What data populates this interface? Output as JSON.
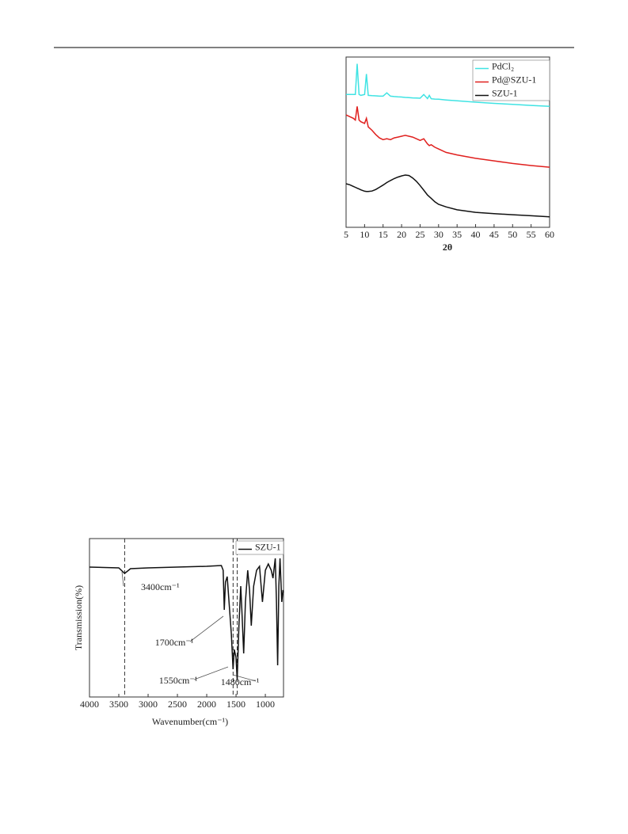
{
  "chart_data": [
    {
      "type": "line",
      "xlabel": "2θ",
      "x": [
        5,
        6,
        7,
        7.5,
        8,
        8.5,
        9,
        10,
        10.5,
        11,
        12,
        13,
        14,
        15,
        16,
        17,
        18,
        19,
        20,
        21,
        22,
        23,
        24,
        25,
        26,
        27,
        27.5,
        28,
        29,
        30,
        32,
        35,
        40,
        45,
        50,
        55,
        60
      ],
      "xlim": [
        5,
        60
      ],
      "xticks": [
        5,
        10,
        15,
        20,
        25,
        30,
        35,
        40,
        45,
        50,
        55,
        60
      ],
      "ylim": [
        0,
        100
      ],
      "legend": "top-right",
      "series": [
        {
          "name": "PdCl₂",
          "color": "#3fe3e3",
          "values": [
            78,
            78,
            78,
            78,
            96,
            78,
            77.5,
            78,
            90,
            77.5,
            77.3,
            77.2,
            77,
            77,
            79,
            77,
            76.8,
            76.6,
            76.5,
            76.3,
            76.2,
            76,
            75.9,
            75.8,
            78,
            75.6,
            77.5,
            75.5,
            75.3,
            75.2,
            74.8,
            74.3,
            73.5,
            72.8,
            72.2,
            71.6,
            71
          ]
        },
        {
          "name": "Pd@SZU-1",
          "color": "#e0201e",
          "values": [
            66,
            65,
            64,
            63,
            71,
            63,
            62,
            61,
            64,
            59,
            57,
            54.5,
            52.5,
            51.5,
            52,
            51.5,
            52.5,
            53,
            53.5,
            54,
            53.5,
            53,
            52,
            51,
            52,
            49,
            48,
            48.5,
            47,
            46,
            44,
            42.5,
            40.5,
            39,
            37.5,
            36.3,
            35.3
          ]
        },
        {
          "name": "SZU-1",
          "color": "#111111",
          "values": [
            25.6,
            25,
            24,
            23.5,
            23,
            22.5,
            22,
            21.2,
            21,
            21,
            21.3,
            22.2,
            23.5,
            24.8,
            26.3,
            27.5,
            28.6,
            29.5,
            30.2,
            30.7,
            30.4,
            29,
            27,
            24.5,
            21.8,
            19,
            18,
            17,
            15,
            13.5,
            12,
            10.3,
            8.8,
            8,
            7.4,
            6.8,
            6.2
          ]
        }
      ]
    },
    {
      "type": "line",
      "xlabel": "Wavenumber(cm⁻¹)",
      "ylabel": "Transmission(%)",
      "x": [
        4000,
        3500,
        3400,
        3300,
        3000,
        2000,
        1750,
        1720,
        1700,
        1680,
        1650,
        1620,
        1580,
        1550,
        1530,
        1500,
        1480,
        1450,
        1420,
        1400,
        1370,
        1340,
        1300,
        1270,
        1240,
        1200,
        1150,
        1100,
        1050,
        1000,
        950,
        900,
        870,
        830,
        810,
        790,
        770,
        750,
        720,
        700,
        690
      ],
      "xlim": [
        4000,
        690
      ],
      "xticks": [
        4000,
        3500,
        3000,
        2500,
        2000,
        1500,
        1000
      ],
      "ylim": [
        0,
        100
      ],
      "legend": "top-right",
      "series": [
        {
          "name": "SZU-1",
          "color": "#111111",
          "values": [
            82,
            81.5,
            78,
            81,
            81.5,
            82.5,
            83,
            80,
            55,
            72.5,
            76,
            60,
            40,
            17.5,
            30,
            25,
            11,
            45,
            70,
            55,
            27.5,
            60,
            80,
            67.5,
            45,
            70,
            80,
            82.5,
            60,
            80,
            84,
            80,
            75,
            87.5,
            60,
            20,
            70,
            87.5,
            60,
            67.5,
            66
          ]
        }
      ],
      "annotations": [
        {
          "text": "3400cm⁻¹",
          "x": 3400
        },
        {
          "text": "1700cm⁻¹",
          "x": 1700
        },
        {
          "text": "1550cm⁻¹",
          "x": 1550
        },
        {
          "text": "1480cm⁻¹",
          "x": 1480
        }
      ]
    }
  ]
}
